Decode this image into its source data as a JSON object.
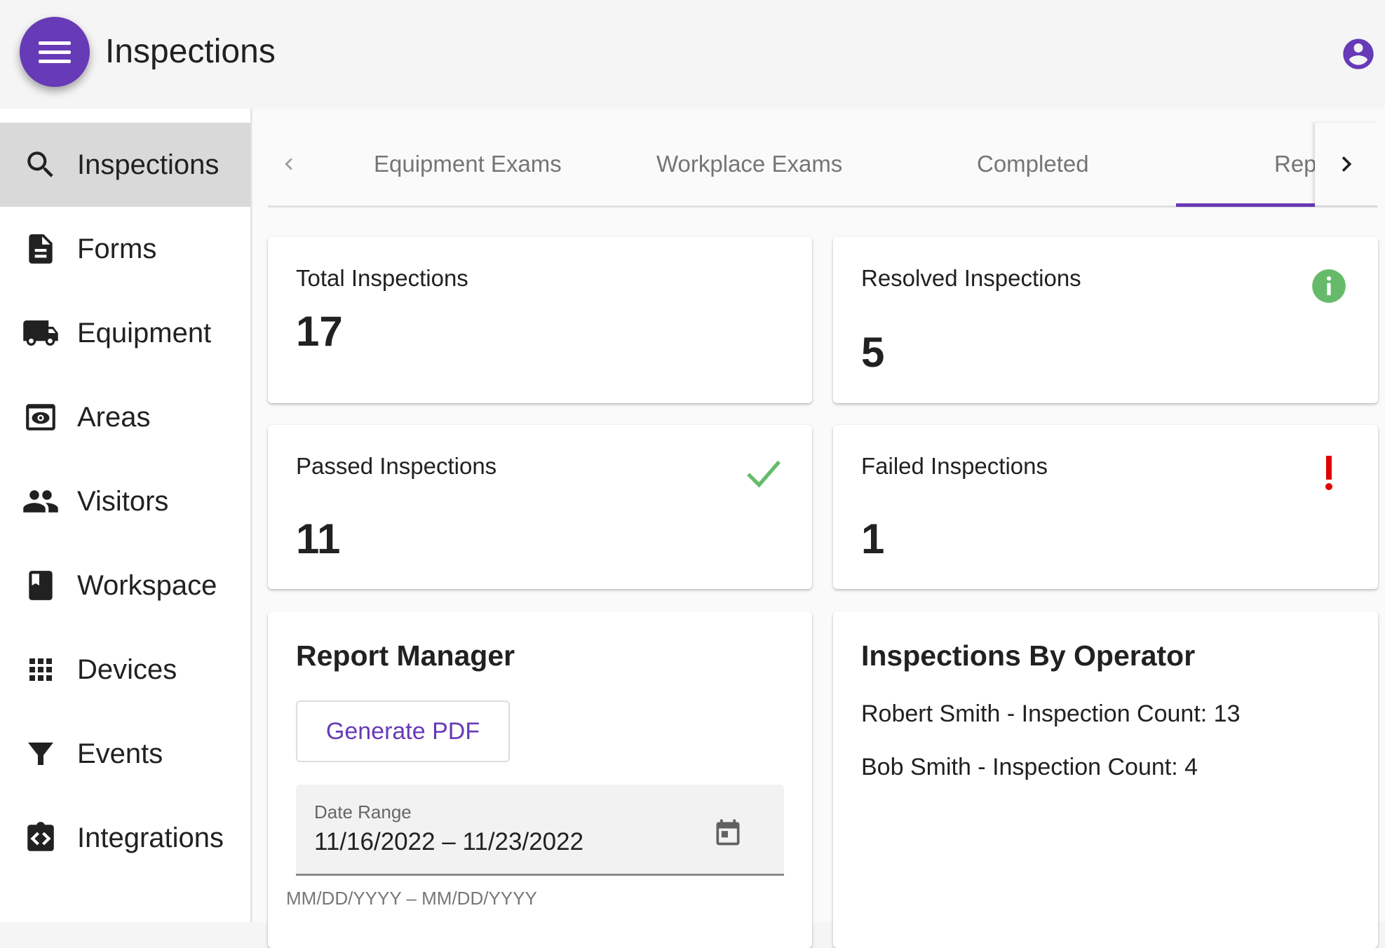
{
  "header": {
    "title": "Inspections",
    "menu_icon": "hamburger-icon",
    "account_icon": "account-circle-icon",
    "accent": "#673ab7"
  },
  "sidebar": {
    "items": [
      {
        "label": "Inspections",
        "icon": "search-icon",
        "active": true
      },
      {
        "label": "Forms",
        "icon": "document-icon"
      },
      {
        "label": "Equipment",
        "icon": "truck-icon"
      },
      {
        "label": "Areas",
        "icon": "eye-icon"
      },
      {
        "label": "Visitors",
        "icon": "people-icon"
      },
      {
        "label": "Workspace",
        "icon": "book-icon"
      },
      {
        "label": "Devices",
        "icon": "grid-icon"
      },
      {
        "label": "Events",
        "icon": "filter-icon"
      },
      {
        "label": "Integrations",
        "icon": "code-icon"
      }
    ]
  },
  "tabs": {
    "items": [
      "Equipment Exams",
      "Workplace Exams",
      "Completed",
      "Reports"
    ],
    "active": 3
  },
  "stats": {
    "total": {
      "label": "Total Inspections",
      "value": "17"
    },
    "resolved": {
      "label": "Resolved Inspections",
      "value": "5",
      "icon": "info-icon",
      "color": "#66bb6a"
    },
    "passed": {
      "label": "Passed Inspections",
      "value": "11",
      "icon": "check-icon",
      "color": "#66bb6a"
    },
    "failed": {
      "label": "Failed Inspections",
      "value": "1",
      "icon": "exclamation-icon",
      "color": "#e00000"
    }
  },
  "report": {
    "title": "Report Manager",
    "generate_label": "Generate PDF",
    "date_label": "Date Range",
    "date_value": "11/16/2022 – 11/23/2022",
    "date_helper": "MM/DD/YYYY – MM/DD/YYYY"
  },
  "operators": {
    "title": "Inspections By Operator",
    "lines": [
      "Robert Smith - Inspection Count: 13",
      "Bob Smith - Inspection Count: 4"
    ]
  }
}
